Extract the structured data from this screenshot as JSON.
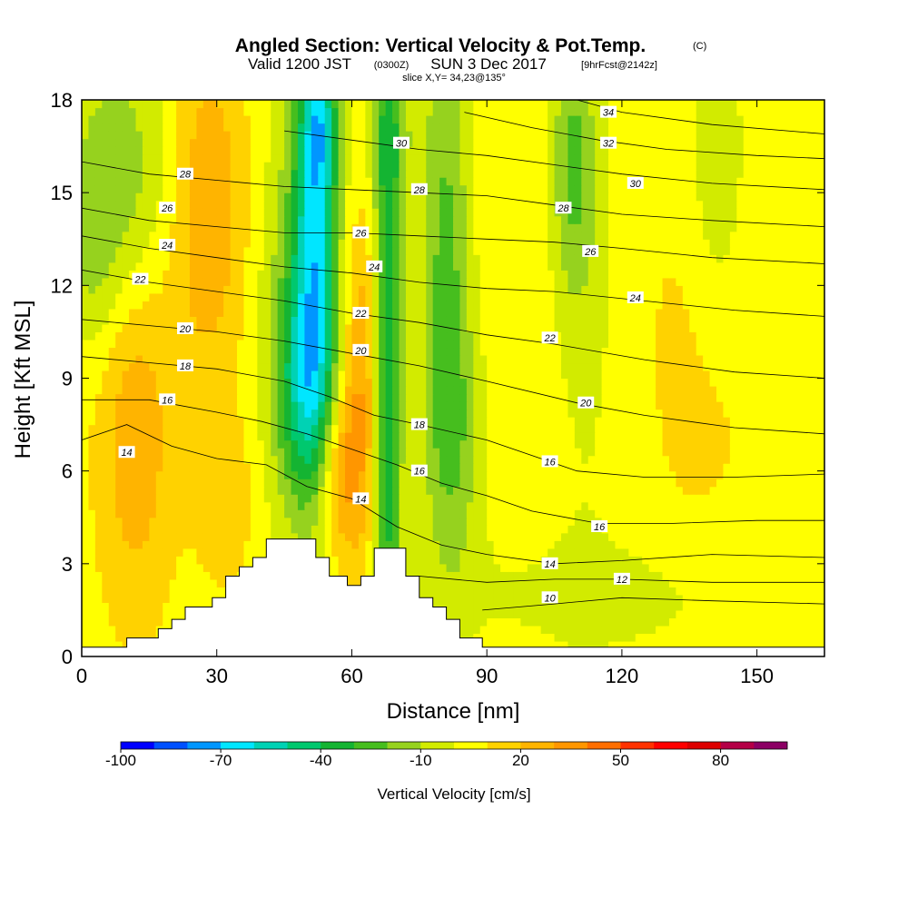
{
  "header": {
    "title_main": "Angled Section: Vertical Velocity & Pot.Temp.",
    "title_unit": "(C)",
    "sub_valid": "Valid 1200 JST",
    "sub_utc": "(0300Z)",
    "sub_date": "SUN 3 Dec 2017",
    "sub_fcst": "[9hrFcst@2142z]",
    "sub_slice": "slice X,Y= 34,23@135°"
  },
  "chart_data": {
    "type": "heatmap",
    "xlabel": "Distance [nm]",
    "ylabel": "Height [Kft MSL]",
    "xlim": [
      0,
      165
    ],
    "ylim": [
      0,
      18
    ],
    "x_ticks": [
      0,
      30,
      60,
      90,
      120,
      150
    ],
    "y_ticks": [
      0,
      3,
      6,
      9,
      12,
      15,
      18
    ],
    "colorbar": {
      "label": "Vertical Velocity [cm/s]",
      "tick_labels": [
        "-100",
        "-70",
        "-40",
        "-10",
        "20",
        "50",
        "80"
      ],
      "tick_values": [
        -100,
        -70,
        -40,
        -10,
        20,
        50,
        80
      ],
      "levels": [
        -100,
        -90,
        -80,
        -70,
        -60,
        -50,
        -40,
        -30,
        -20,
        -10,
        0,
        10,
        20,
        30,
        40,
        50,
        60,
        70,
        80,
        90,
        100
      ],
      "colors": [
        "#0000ff",
        "#0050ff",
        "#0096ff",
        "#00e6ff",
        "#00d2b4",
        "#00c86e",
        "#14b432",
        "#46be1e",
        "#96d21e",
        "#d2eb00",
        "#ffff00",
        "#ffd200",
        "#ffb400",
        "#ff9600",
        "#ff6e00",
        "#ff3200",
        "#ff0000",
        "#dc0000",
        "#b40046",
        "#8c0064"
      ]
    },
    "terrain_profile": [
      [
        0,
        0.3
      ],
      [
        10,
        0.3
      ],
      [
        10,
        0.6
      ],
      [
        17,
        0.6
      ],
      [
        17,
        0.9
      ],
      [
        20,
        0.9
      ],
      [
        20,
        1.2
      ],
      [
        23,
        1.2
      ],
      [
        23,
        1.6
      ],
      [
        29,
        1.6
      ],
      [
        29,
        1.9
      ],
      [
        32,
        1.9
      ],
      [
        32,
        2.6
      ],
      [
        35,
        2.6
      ],
      [
        35,
        2.9
      ],
      [
        38,
        2.9
      ],
      [
        38,
        3.2
      ],
      [
        41,
        3.2
      ],
      [
        41,
        3.8
      ],
      [
        52,
        3.8
      ],
      [
        52,
        3.2
      ],
      [
        55,
        3.2
      ],
      [
        55,
        2.6
      ],
      [
        59,
        2.6
      ],
      [
        59,
        2.3
      ],
      [
        62,
        2.3
      ],
      [
        62,
        2.6
      ],
      [
        65,
        2.6
      ],
      [
        65,
        3.5
      ],
      [
        72,
        3.5
      ],
      [
        72,
        2.6
      ],
      [
        75,
        2.6
      ],
      [
        75,
        1.9
      ],
      [
        78,
        1.9
      ],
      [
        78,
        1.6
      ],
      [
        81,
        1.6
      ],
      [
        81,
        1.2
      ],
      [
        84,
        1.2
      ],
      [
        84,
        0.6
      ],
      [
        89,
        0.6
      ],
      [
        89,
        0.3
      ],
      [
        165,
        0.3
      ]
    ],
    "vertical_velocity_features": [
      {
        "x": 52,
        "y": 14.5,
        "w": -55,
        "sx": 3.5,
        "sy": 5
      },
      {
        "x": 53,
        "y": 17.3,
        "w": -25,
        "sx": 2.5,
        "sy": 1.5
      },
      {
        "x": 50,
        "y": 8.5,
        "w": -35,
        "sx": 4.5,
        "sy": 2.5
      },
      {
        "x": 48,
        "y": 11,
        "w": -20,
        "sx": 6,
        "sy": 5
      },
      {
        "x": 68,
        "y": 9,
        "w": -42,
        "sx": 2.2,
        "sy": 9
      },
      {
        "x": 69,
        "y": 17,
        "w": -15,
        "sx": 4,
        "sy": 2
      },
      {
        "x": 81,
        "y": 13,
        "w": -28,
        "sx": 4,
        "sy": 6
      },
      {
        "x": 83,
        "y": 7,
        "w": -16,
        "sx": 5,
        "sy": 3
      },
      {
        "x": 109,
        "y": 16,
        "w": -25,
        "sx": 3.5,
        "sy": 3
      },
      {
        "x": 112,
        "y": 12,
        "w": -8,
        "sx": 5,
        "sy": 6
      },
      {
        "x": 141,
        "y": 15,
        "w": -15,
        "sx": 5,
        "sy": 4
      },
      {
        "x": 8,
        "y": 15.5,
        "w": -22,
        "sx": 9,
        "sy": 3
      },
      {
        "x": 3,
        "y": 12.5,
        "w": -10,
        "sx": 4,
        "sy": 2
      },
      {
        "x": 28,
        "y": 14.5,
        "w": 25,
        "sx": 6,
        "sy": 4
      },
      {
        "x": 62,
        "y": 9,
        "w": 25,
        "sx": 3,
        "sy": 4
      },
      {
        "x": 57,
        "y": 6,
        "w": 28,
        "sx": 3.5,
        "sy": 2
      },
      {
        "x": 12,
        "y": 7,
        "w": 22,
        "sx": 6,
        "sy": 4
      },
      {
        "x": 32,
        "y": 5,
        "w": 12,
        "sx": 5,
        "sy": 2
      },
      {
        "x": 138,
        "y": 10,
        "w": 10,
        "sx": 9,
        "sy": 5
      },
      {
        "x": 95,
        "y": 14,
        "w": 5,
        "sx": 8,
        "sy": 5
      },
      {
        "x": 120,
        "y": 2,
        "w": -8,
        "sx": 30,
        "sy": 1.5
      }
    ],
    "theta_isotherms": [
      {
        "value": 10,
        "points": [
          [
            89,
            1.5
          ],
          [
            105,
            1.7
          ],
          [
            120,
            1.9
          ],
          [
            140,
            1.8
          ],
          [
            165,
            1.7
          ]
        ]
      },
      {
        "value": 12,
        "points": [
          [
            75,
            2.6
          ],
          [
            90,
            2.4
          ],
          [
            105,
            2.5
          ],
          [
            120,
            2.5
          ],
          [
            140,
            2.4
          ],
          [
            165,
            2.4
          ]
        ]
      },
      {
        "value": 14,
        "points": [
          [
            0,
            7.0
          ],
          [
            10,
            7.5
          ],
          [
            20,
            6.8
          ],
          [
            30,
            6.4
          ],
          [
            41,
            6.2
          ],
          [
            50,
            5.5
          ],
          [
            60,
            5.1
          ],
          [
            70,
            4.2
          ],
          [
            80,
            3.6
          ],
          [
            90,
            3.3
          ],
          [
            105,
            3.0
          ],
          [
            120,
            3.1
          ],
          [
            140,
            3.3
          ],
          [
            165,
            3.2
          ]
        ]
      },
      {
        "value": 16,
        "points": [
          [
            0,
            8.3
          ],
          [
            15,
            8.3
          ],
          [
            30,
            7.9
          ],
          [
            40,
            7.6
          ],
          [
            50,
            7.2
          ],
          [
            60,
            6.7
          ],
          [
            70,
            6.2
          ],
          [
            80,
            5.6
          ],
          [
            90,
            5.2
          ],
          [
            100,
            4.7
          ],
          [
            115,
            4.3
          ],
          [
            130,
            4.3
          ],
          [
            150,
            4.4
          ],
          [
            165,
            4.4
          ]
        ]
      },
      {
        "value": 18,
        "points": [
          [
            0,
            9.7
          ],
          [
            15,
            9.5
          ],
          [
            30,
            9.3
          ],
          [
            45,
            8.9
          ],
          [
            55,
            8.4
          ],
          [
            65,
            7.8
          ],
          [
            75,
            7.5
          ],
          [
            90,
            7.0
          ],
          [
            100,
            6.5
          ],
          [
            110,
            6.0
          ],
          [
            125,
            5.8
          ],
          [
            145,
            5.8
          ],
          [
            165,
            5.9
          ]
        ]
      },
      {
        "value": 20,
        "points": [
          [
            0,
            10.9
          ],
          [
            15,
            10.7
          ],
          [
            30,
            10.5
          ],
          [
            45,
            10.2
          ],
          [
            60,
            9.8
          ],
          [
            75,
            9.4
          ],
          [
            90,
            8.9
          ],
          [
            110,
            8.2
          ],
          [
            125,
            7.8
          ],
          [
            145,
            7.4
          ],
          [
            165,
            7.2
          ]
        ]
      },
      {
        "value": 22,
        "points": [
          [
            0,
            12.5
          ],
          [
            15,
            12.1
          ],
          [
            30,
            11.8
          ],
          [
            45,
            11.5
          ],
          [
            60,
            11.1
          ],
          [
            75,
            10.8
          ],
          [
            90,
            10.4
          ],
          [
            105,
            10.1
          ],
          [
            125,
            9.6
          ],
          [
            145,
            9.2
          ],
          [
            165,
            9.0
          ]
        ]
      },
      {
        "value": 24,
        "points": [
          [
            0,
            13.6
          ],
          [
            15,
            13.2
          ],
          [
            30,
            12.9
          ],
          [
            45,
            12.6
          ],
          [
            60,
            12.4
          ],
          [
            75,
            12.1
          ],
          [
            90,
            11.9
          ],
          [
            105,
            11.8
          ],
          [
            125,
            11.5
          ],
          [
            145,
            11.2
          ],
          [
            165,
            11.0
          ]
        ]
      },
      {
        "value": 26,
        "points": [
          [
            0,
            14.5
          ],
          [
            15,
            14.1
          ],
          [
            30,
            13.9
          ],
          [
            45,
            13.7
          ],
          [
            60,
            13.7
          ],
          [
            75,
            13.6
          ],
          [
            90,
            13.5
          ],
          [
            105,
            13.4
          ],
          [
            120,
            13.2
          ],
          [
            140,
            12.9
          ],
          [
            165,
            12.7
          ]
        ]
      },
      {
        "value": 28,
        "points": [
          [
            0,
            16.0
          ],
          [
            15,
            15.6
          ],
          [
            30,
            15.4
          ],
          [
            45,
            15.2
          ],
          [
            60,
            15.1
          ],
          [
            75,
            15.0
          ],
          [
            90,
            14.9
          ],
          [
            105,
            14.6
          ],
          [
            120,
            14.3
          ],
          [
            140,
            14.1
          ],
          [
            165,
            13.9
          ]
        ]
      },
      {
        "value": 30,
        "points": [
          [
            45,
            17.0
          ],
          [
            60,
            16.7
          ],
          [
            75,
            16.4
          ],
          [
            90,
            16.2
          ],
          [
            105,
            15.9
          ],
          [
            120,
            15.6
          ],
          [
            140,
            15.3
          ],
          [
            165,
            15.1
          ]
        ]
      },
      {
        "value": 32,
        "points": [
          [
            85,
            17.6
          ],
          [
            100,
            17.1
          ],
          [
            115,
            16.7
          ],
          [
            130,
            16.4
          ],
          [
            150,
            16.2
          ],
          [
            165,
            16.1
          ]
        ]
      },
      {
        "value": 34,
        "points": [
          [
            110,
            18.0
          ],
          [
            120,
            17.6
          ],
          [
            140,
            17.2
          ],
          [
            165,
            16.9
          ]
        ]
      }
    ],
    "contour_labels": [
      {
        "text": "10",
        "x": 104,
        "y": 1.9
      },
      {
        "text": "12",
        "x": 120,
        "y": 2.5
      },
      {
        "text": "14",
        "x": 104,
        "y": 3.0
      },
      {
        "text": "16",
        "x": 115,
        "y": 4.2
      },
      {
        "text": "14",
        "x": 62,
        "y": 5.1
      },
      {
        "text": "16",
        "x": 75,
        "y": 6.0
      },
      {
        "text": "16",
        "x": 104,
        "y": 6.3
      },
      {
        "text": "18",
        "x": 75,
        "y": 7.5
      },
      {
        "text": "20",
        "x": 112,
        "y": 8.2
      },
      {
        "text": "22",
        "x": 104,
        "y": 10.3
      },
      {
        "text": "24",
        "x": 123,
        "y": 11.6
      },
      {
        "text": "26",
        "x": 113,
        "y": 13.1
      },
      {
        "text": "28",
        "x": 107,
        "y": 14.5
      },
      {
        "text": "30",
        "x": 123,
        "y": 15.3
      },
      {
        "text": "32",
        "x": 117,
        "y": 16.6
      },
      {
        "text": "34",
        "x": 117,
        "y": 17.6
      },
      {
        "text": "14",
        "x": 10,
        "y": 6.6
      },
      {
        "text": "16",
        "x": 19,
        "y": 8.3
      },
      {
        "text": "18",
        "x": 23,
        "y": 9.4
      },
      {
        "text": "20",
        "x": 23,
        "y": 10.6
      },
      {
        "text": "22",
        "x": 13,
        "y": 12.2
      },
      {
        "text": "24",
        "x": 19,
        "y": 13.3
      },
      {
        "text": "26",
        "x": 19,
        "y": 14.5
      },
      {
        "text": "28",
        "x": 23,
        "y": 15.6
      },
      {
        "text": "20",
        "x": 62,
        "y": 9.9
      },
      {
        "text": "22",
        "x": 62,
        "y": 11.1
      },
      {
        "text": "24",
        "x": 65,
        "y": 12.6
      },
      {
        "text": "26",
        "x": 62,
        "y": 13.7
      },
      {
        "text": "28",
        "x": 75,
        "y": 15.1
      },
      {
        "text": "30",
        "x": 71,
        "y": 16.6
      }
    ]
  }
}
